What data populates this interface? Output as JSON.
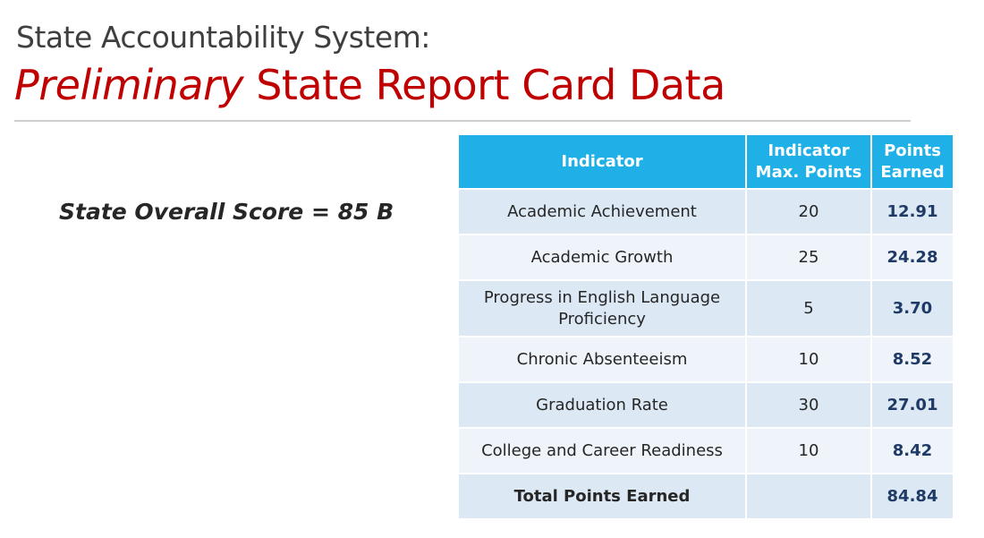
{
  "header": {
    "subtitle": "State Accountability System:",
    "title_em": "Preliminary",
    "title_rest": " State Report Card Data"
  },
  "overall_score": "State Overall Score = 85 B",
  "table": {
    "headers": {
      "indicator": "Indicator",
      "max_line1": "Indicator",
      "max_line2": "Max. Points",
      "earned_line1": "Points",
      "earned_line2": "Earned"
    },
    "rows": [
      {
        "indicator": "Academic Achievement",
        "max": "20",
        "earned": "12.91"
      },
      {
        "indicator": "Academic Growth",
        "max": "25",
        "earned": "24.28"
      },
      {
        "indicator_line1": "Progress in English Language",
        "indicator_line2": "Proficiency",
        "max": "5",
        "earned": "3.70"
      },
      {
        "indicator": "Chronic Absenteeism",
        "max": "10",
        "earned": "8.52"
      },
      {
        "indicator": "Graduation Rate",
        "max": "30",
        "earned": "27.01"
      },
      {
        "indicator": "College and Career Readiness",
        "max": "10",
        "earned": "8.42"
      }
    ],
    "total": {
      "label": "Total Points Earned",
      "max": "",
      "earned": "84.84"
    }
  },
  "colors": {
    "title_red": "#c00000",
    "header_blue": "#1fb0e8",
    "row_shade_dark": "#dce9f5",
    "row_shade_light": "#eef4fa",
    "points_navy": "#1f3a66"
  }
}
